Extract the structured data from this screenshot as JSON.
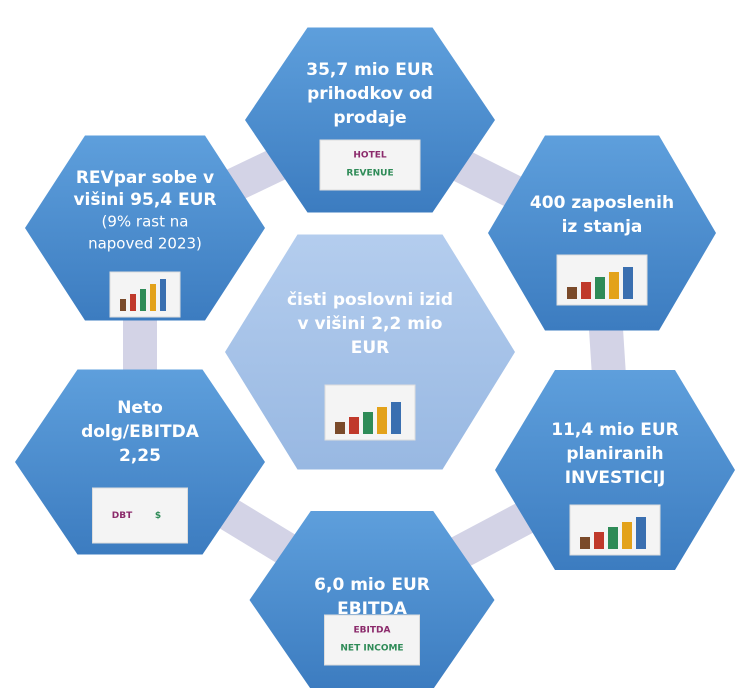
{
  "nodes": [
    {
      "lines": [
        "35,7 mio EUR",
        "prihodkov od",
        "prodaje"
      ],
      "icon_text": [
        "HOTEL",
        "REVENUE"
      ]
    },
    {
      "lines": [
        "400 zaposlenih",
        "iz stanja"
      ],
      "icon_text": []
    },
    {
      "lines": [
        "11,4 mio EUR",
        "planiranih",
        "INVESTICIJ"
      ],
      "icon_text": []
    },
    {
      "lines": [
        "6,0 mio EUR",
        "EBITDA"
      ],
      "icon_text": [
        "EBITDA",
        "NET INCOME"
      ]
    },
    {
      "lines": [
        "Neto",
        "dolg/EBITDA",
        "2,25"
      ],
      "icon_text": [
        "DBT",
        "$"
      ]
    },
    {
      "lines": [
        "REVpar sobe v",
        "višini 95,4 EUR",
        "(9% rast na",
        "napoved 2023)"
      ],
      "icon_text": []
    },
    {
      "lines": [
        "čisti poslovni izid",
        "v višini 2,2 mio",
        "EUR"
      ],
      "icon_text": []
    }
  ]
}
